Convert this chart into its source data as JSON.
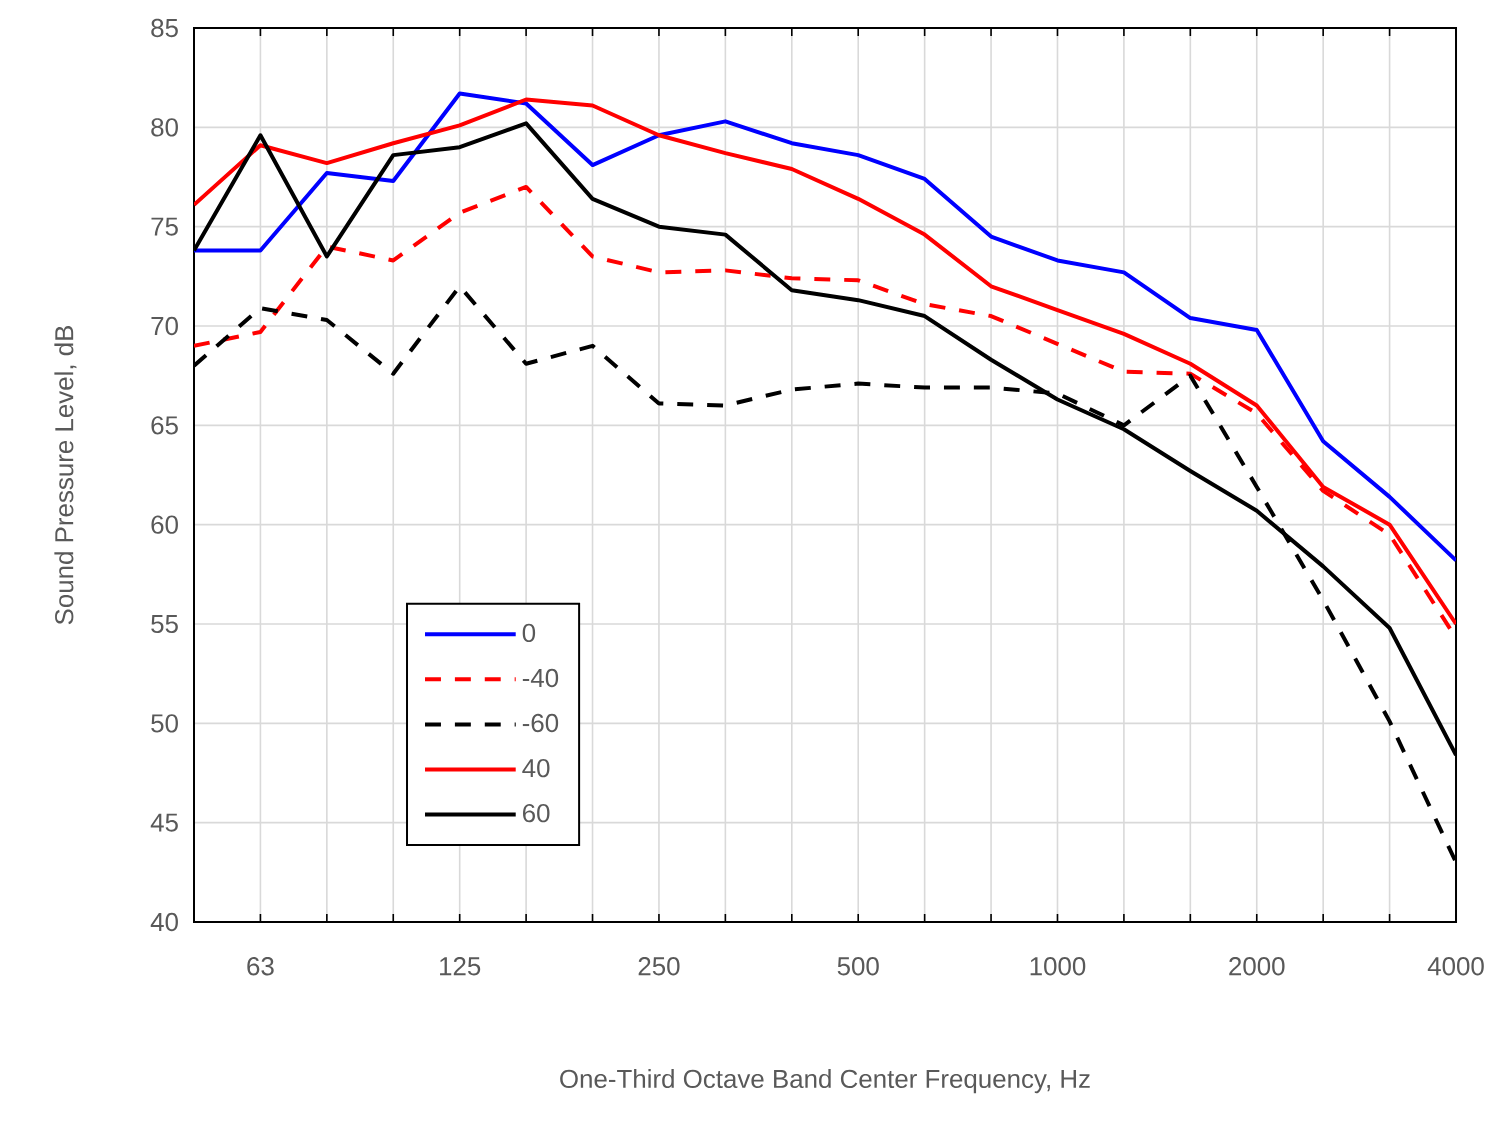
{
  "chart_data": {
    "type": "line",
    "xlabel": "One-Third Octave Band Center  Frequency, Hz",
    "ylabel": "Sound Pressure Level, dB",
    "categories": [
      null,
      "63",
      null,
      null,
      "125",
      null,
      null,
      "250",
      null,
      null,
      "500",
      null,
      null,
      "1000",
      null,
      null,
      "2000",
      null,
      null,
      "4000"
    ],
    "ylim": [
      40,
      85
    ],
    "yticks": [
      40,
      45,
      50,
      55,
      60,
      65,
      70,
      75,
      80,
      85
    ],
    "grid": true,
    "legend": "bottom left",
    "marker": "none",
    "series": [
      {
        "name": "0",
        "color": "#0000ff",
        "line_style": "solid",
        "values": [
          73.8,
          73.8,
          77.7,
          77.3,
          81.7,
          81.2,
          78.1,
          79.6,
          80.3,
          79.2,
          78.6,
          77.4,
          74.5,
          73.3,
          72.7,
          70.4,
          69.8,
          64.2,
          61.4,
          58.2
        ]
      },
      {
        "name": "-40",
        "color": "#ff0000",
        "line_style": "dashed",
        "values": [
          69.0,
          69.7,
          74.0,
          73.3,
          75.7,
          77.0,
          73.5,
          72.7,
          72.8,
          72.4,
          72.3,
          71.1,
          70.5,
          69.1,
          67.7,
          67.6,
          65.6,
          61.7,
          59.5,
          54.3
        ]
      },
      {
        "name": "-60",
        "color": "#000000",
        "line_style": "dashed",
        "values": [
          68.0,
          70.9,
          70.3,
          67.6,
          72.0,
          68.1,
          69.0,
          66.1,
          66.0,
          66.8,
          67.1,
          66.9,
          66.9,
          66.6,
          65.0,
          67.5,
          61.9,
          56.2,
          50.1,
          43.0
        ]
      },
      {
        "name": "40",
        "color": "#ff0000",
        "line_style": "solid",
        "values": [
          76.1,
          79.1,
          78.2,
          79.2,
          80.1,
          81.4,
          81.1,
          79.6,
          78.7,
          77.9,
          76.4,
          74.6,
          72.0,
          70.8,
          69.6,
          68.1,
          66.0,
          61.9,
          60.0,
          55.0
        ]
      },
      {
        "name": "60",
        "color": "#000000",
        "line_style": "solid",
        "values": [
          73.8,
          79.6,
          73.5,
          78.6,
          79.0,
          80.2,
          76.4,
          75.0,
          74.6,
          71.8,
          71.3,
          70.5,
          68.3,
          66.3,
          64.8,
          62.7,
          60.7,
          57.9,
          54.8,
          48.4
        ]
      }
    ]
  }
}
